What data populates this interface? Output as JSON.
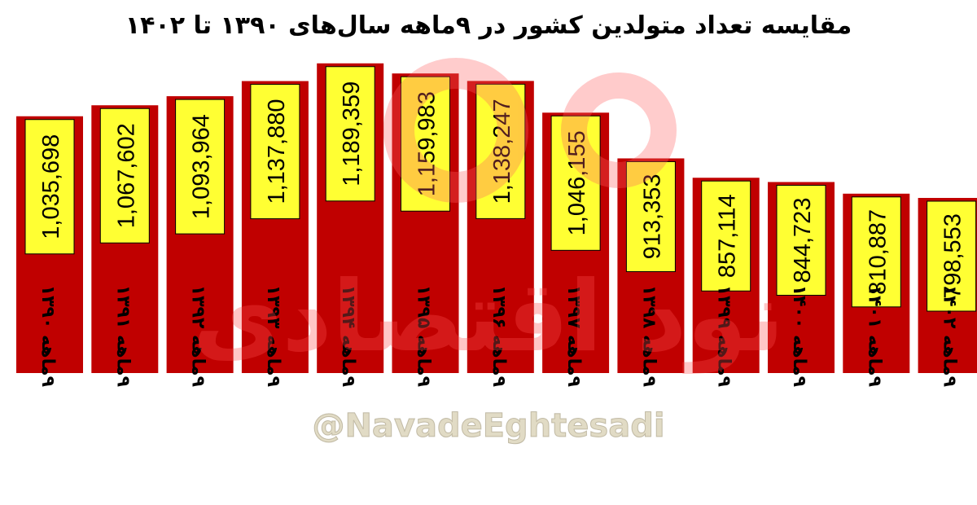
{
  "chart_data": {
    "type": "bar",
    "title": "مقایسه تعداد متولدین کشور در ۹ماهه سال‌های ۱۳۹۰ تا ۱۴۰۲",
    "categories": [
      "۹ماهه ۱۳۹۰",
      "۹ماهه ۱۳۹۱",
      "۹ماهه ۱۳۹۲",
      "۹ماهه ۱۳۹۳",
      "۹ماهه ۱۳۹۴",
      "۹ماهه ۱۳۹۵",
      "۹ماهه ۱۳۹۶",
      "۹ماهه ۱۳۹۷",
      "۹ماهه ۱۳۹۸",
      "۹ماهه ۱۳۹۹",
      "۹ماهه ۱۴۰۰",
      "۹ماهه ۱۴۰۱",
      "۹ماهه ۱۴۰۲"
    ],
    "values": [
      1035698,
      1067602,
      1093964,
      1137880,
      1189359,
      1159983,
      1138247,
      1046155,
      913353,
      857114,
      844723,
      810887,
      798553
    ],
    "data_labels": [
      "1,035,698",
      "1,067,602",
      "1,093,964",
      "1,137,880",
      "1,189,359",
      "1,159,983",
      "1,138,247",
      "1,046,155",
      "913,353",
      "857,114",
      "844,723",
      "810,887",
      "798,553"
    ],
    "xlabel": "",
    "ylabel": "",
    "ylim": [
      290000,
      1300000
    ],
    "grid": false,
    "colors": {
      "bar": "#c00000",
      "label_box": "#ffff33",
      "label_box_border": "#000000"
    }
  },
  "watermark": {
    "logo_text": "نود اقتصادی",
    "handle": "@NavadeEghtesadi"
  }
}
